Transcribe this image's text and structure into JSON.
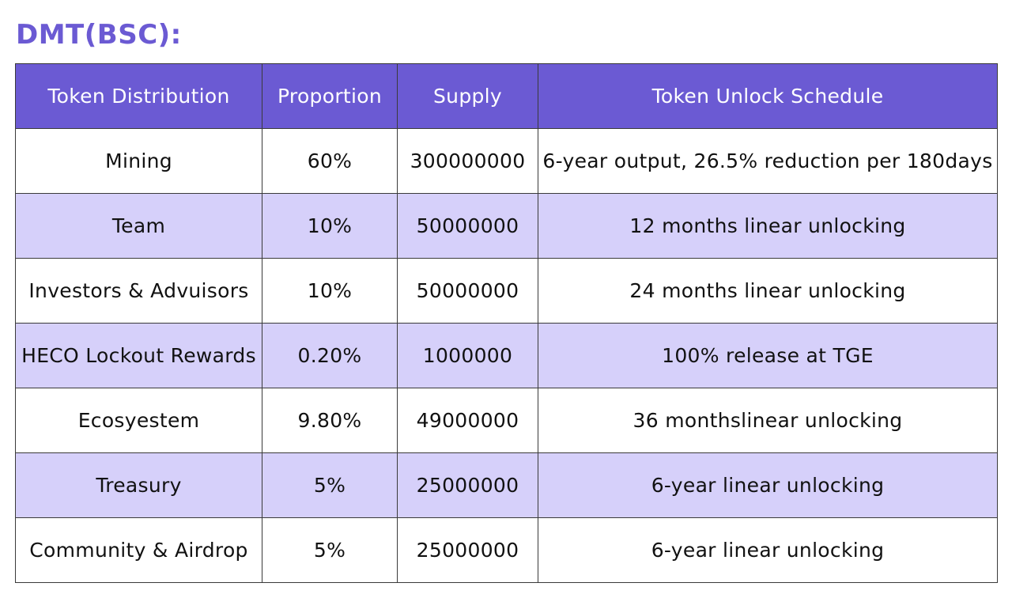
{
  "title": "DMT(BSC):",
  "colors": {
    "accent": "#6b5ad3",
    "row_alt": "#d6d0fa",
    "row_base": "#ffffff",
    "border": "#3a3a3a"
  },
  "table": {
    "headers": [
      "Token Distribution",
      "Proportion",
      "Supply",
      "Token Unlock Schedule"
    ],
    "rows": [
      [
        "Mining",
        "60%",
        "300000000",
        "6-year output, 26.5% reduction per 180days"
      ],
      [
        "Team",
        "10%",
        "50000000",
        "12 months linear unlocking"
      ],
      [
        "Investors & Advuisors",
        "10%",
        "50000000",
        "24 months linear unlocking"
      ],
      [
        "HECO Lockout Rewards",
        "0.20%",
        "1000000",
        "100% release at TGE"
      ],
      [
        "Ecosyestem",
        "9.80%",
        "49000000",
        "36 monthslinear unlocking"
      ],
      [
        "Treasury",
        "5%",
        "25000000",
        "6-year linear unlocking"
      ],
      [
        "Community & Airdrop",
        "5%",
        "25000000",
        "6-year linear unlocking"
      ]
    ]
  }
}
